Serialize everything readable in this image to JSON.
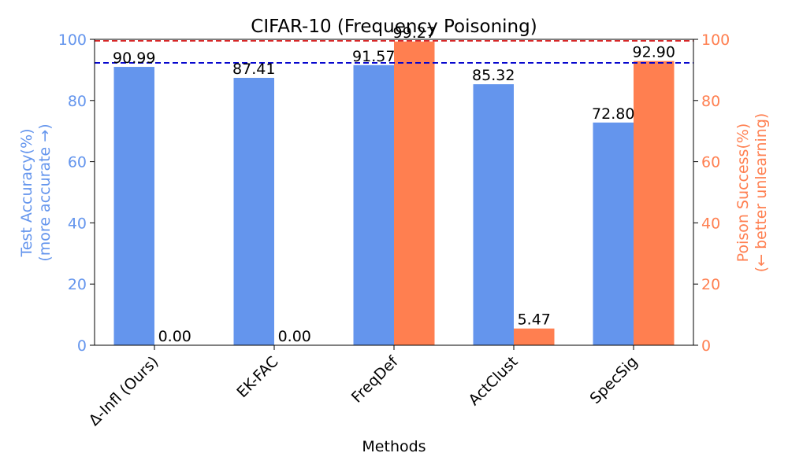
{
  "chart_data": {
    "type": "bar",
    "title": "CIFAR-10 (Frequency Poisoning)",
    "xlabel": "Methods",
    "categories": [
      "Δ-Infl (Ours)",
      "EK-FAC",
      "FreqDef",
      "ActClust",
      "SpecSig"
    ],
    "y_left": {
      "label_line1": "Test Accuracy(%)",
      "label_line2": "(more accurate →)",
      "ylim": [
        0,
        100
      ],
      "ticks": [
        "0",
        "20",
        "40",
        "60",
        "80",
        "100"
      ],
      "color": "#6495ED"
    },
    "y_right": {
      "label_line1": "Poison Success(%)",
      "label_line2": "(← better unlearning)",
      "ylim": [
        0,
        100
      ],
      "ticks": [
        "0",
        "20",
        "40",
        "60",
        "80",
        "100"
      ],
      "color": "#FF7F50"
    },
    "series": [
      {
        "axis": "left",
        "color": "#6495ED",
        "values": [
          90.99,
          87.41,
          91.57,
          85.32,
          72.8
        ],
        "labels": [
          "90.99",
          "87.41",
          "91.57",
          "85.32",
          "72.80"
        ]
      },
      {
        "axis": "right",
        "color": "#FF7F50",
        "values": [
          0.0,
          0.0,
          99.27,
          5.47,
          92.9
        ],
        "labels": [
          "0.00",
          "0.00",
          "99.27",
          "5.47",
          "92.90"
        ]
      }
    ],
    "reference_lines": [
      {
        "axis": "left",
        "value": 92.3,
        "color": "#0000CD",
        "style": "dashed"
      },
      {
        "axis": "right",
        "value": 99.5,
        "color": "#D62728",
        "style": "dashed"
      }
    ],
    "grid": false
  }
}
